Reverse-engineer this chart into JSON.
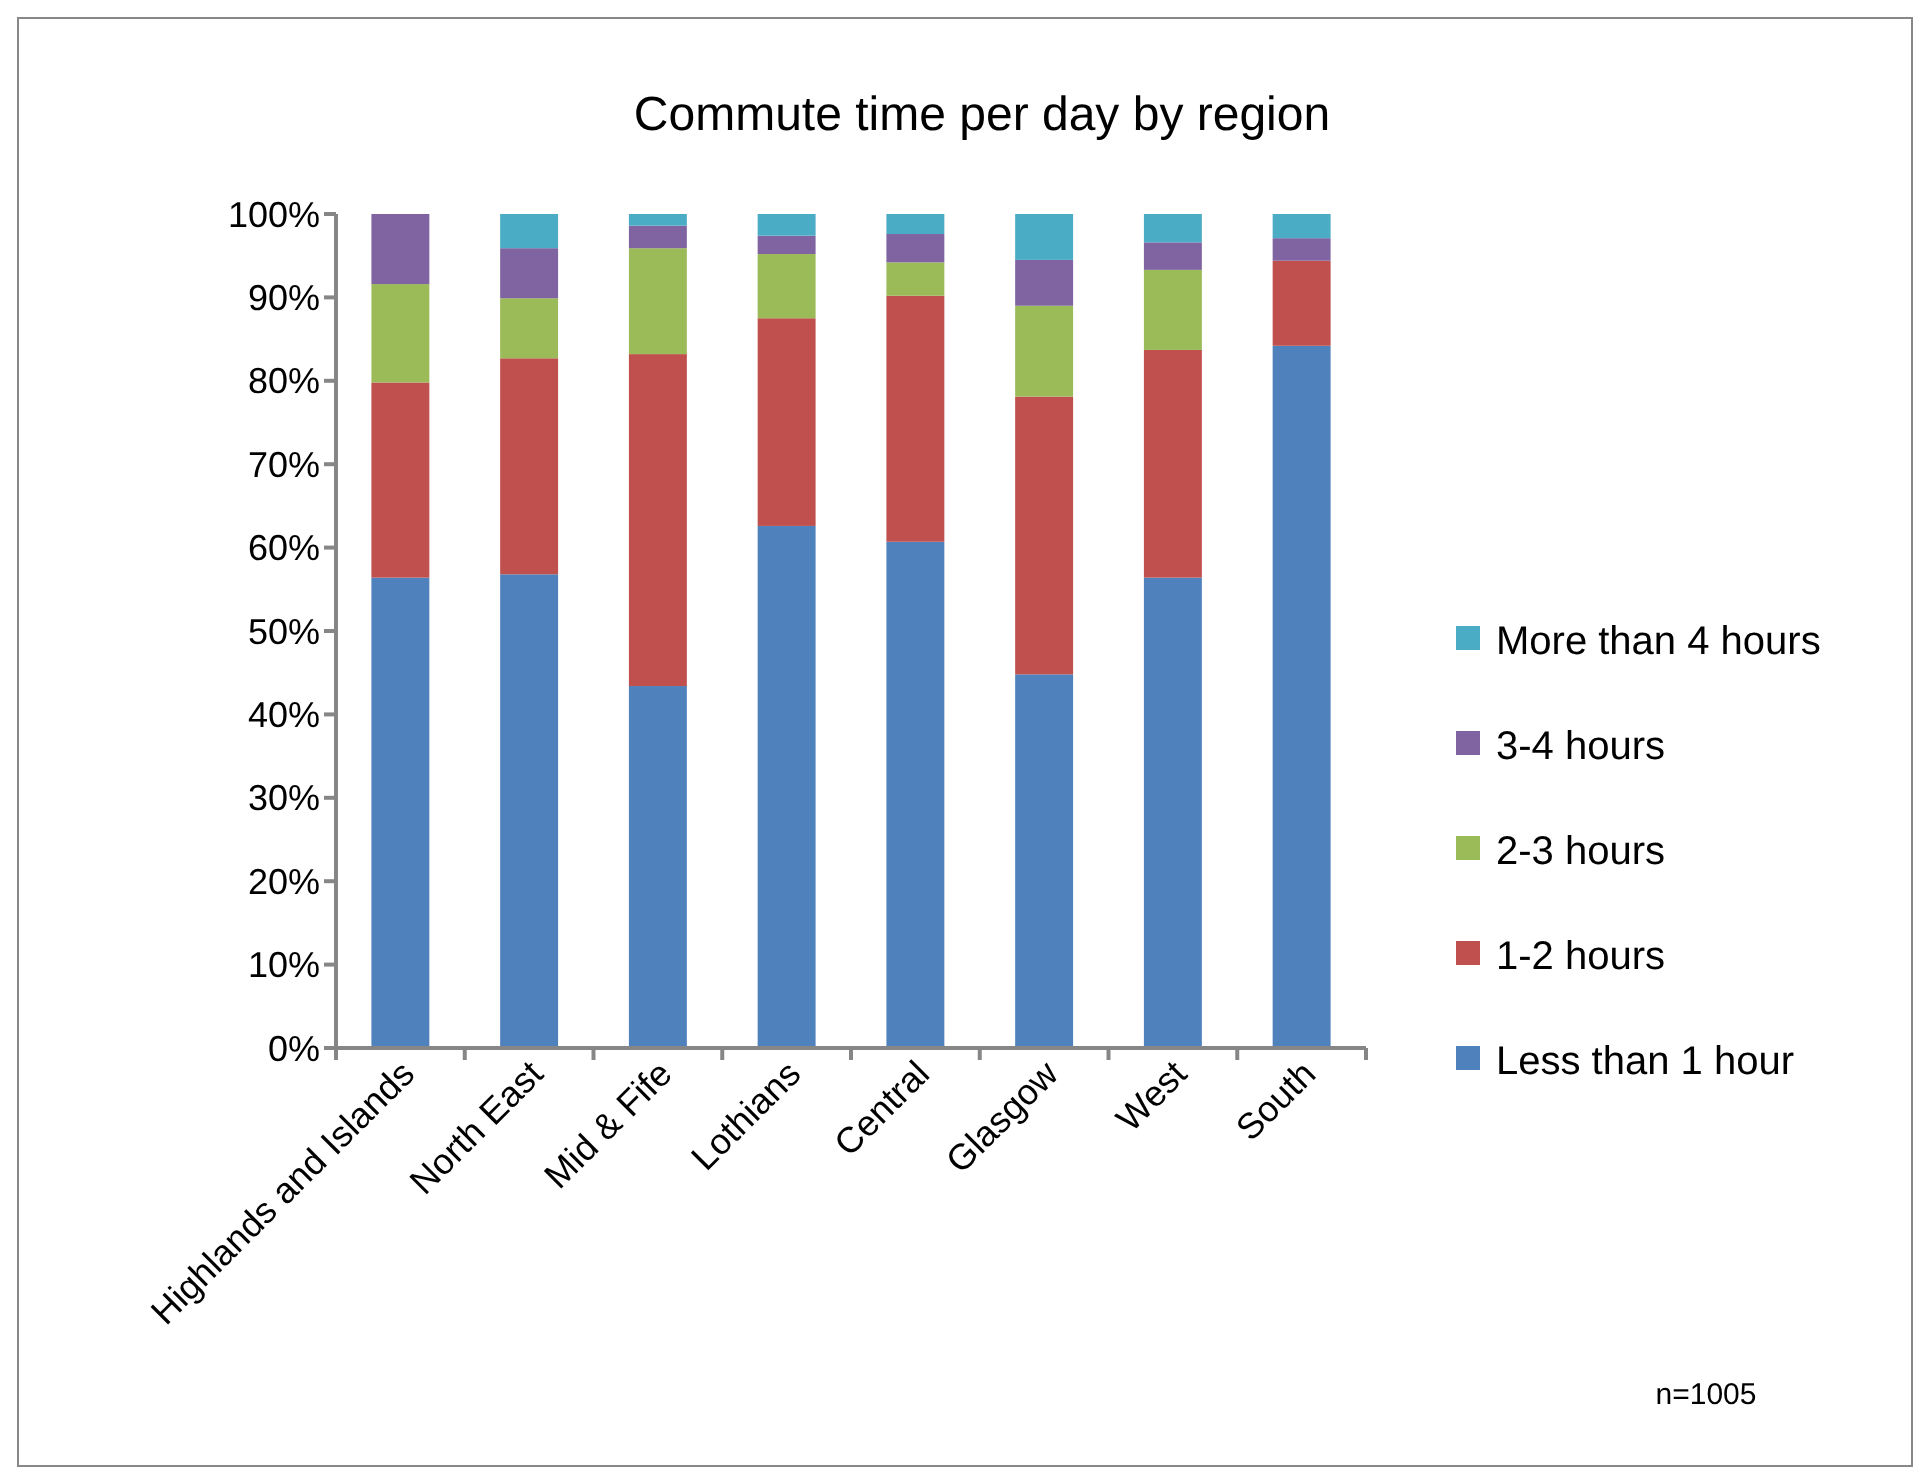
{
  "chart_data": {
    "type": "bar",
    "stacked": true,
    "title": "Commute time per day by region",
    "categories": [
      "Highlands and Islands",
      "North East",
      "Mid & Fife",
      "Lothians",
      "Central",
      "Glasgow",
      "West",
      "South"
    ],
    "series": [
      {
        "name": "Less than 1 hour",
        "color": "#4f81bd",
        "values": [
          56.4,
          56.8,
          43.4,
          62.6,
          60.7,
          44.8,
          56.4,
          84.2
        ]
      },
      {
        "name": "1-2 hours",
        "color": "#c0504d",
        "values": [
          23.4,
          25.9,
          39.8,
          24.9,
          29.5,
          33.3,
          27.3,
          10.2
        ]
      },
      {
        "name": "2-3 hours",
        "color": "#9bbb59",
        "values": [
          11.8,
          7.2,
          12.7,
          7.7,
          4.0,
          10.9,
          9.6,
          0
        ]
      },
      {
        "name": "3-4 hours",
        "color": "#8064a2",
        "values": [
          8.4,
          6.0,
          2.7,
          2.2,
          3.4,
          5.5,
          3.3,
          2.7
        ]
      },
      {
        "name": "More than 4 hours",
        "color": "#4bacc6",
        "values": [
          0,
          4.1,
          1.4,
          2.6,
          2.4,
          5.5,
          3.4,
          2.9
        ]
      }
    ],
    "ylim": [
      0,
      100
    ],
    "yticks": [
      {
        "value": 0,
        "label": "0%"
      },
      {
        "value": 10,
        "label": "10%"
      },
      {
        "value": 20,
        "label": "20%"
      },
      {
        "value": 30,
        "label": "30%"
      },
      {
        "value": 40,
        "label": "40%"
      },
      {
        "value": 50,
        "label": "50%"
      },
      {
        "value": 60,
        "label": "60%"
      },
      {
        "value": 70,
        "label": "70%"
      },
      {
        "value": 80,
        "label": "80%"
      },
      {
        "value": 90,
        "label": "90%"
      },
      {
        "value": 100,
        "label": "100%"
      }
    ],
    "legend": "right",
    "grid": false,
    "annotations": [
      "n=1005"
    ]
  }
}
